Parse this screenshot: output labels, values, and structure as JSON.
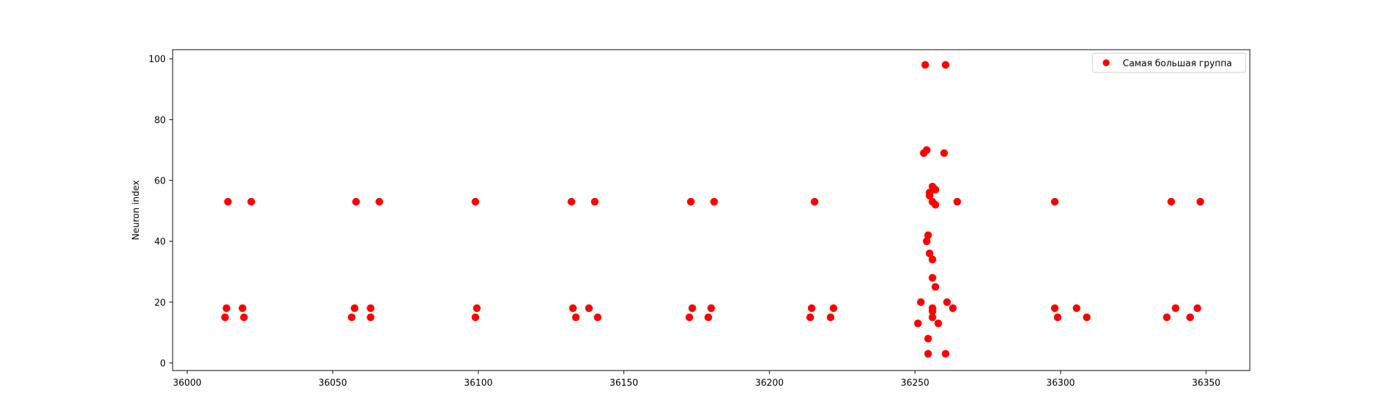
{
  "chart_data": {
    "type": "scatter",
    "title": "",
    "xlabel": "",
    "ylabel": "Neuron index",
    "xlim": [
      35995,
      36365
    ],
    "ylim": [
      -2.5,
      103
    ],
    "xticks": [
      36000,
      36050,
      36100,
      36150,
      36200,
      36250,
      36300,
      36350
    ],
    "yticks": [
      0,
      20,
      40,
      60,
      80,
      100
    ],
    "grid": false,
    "legend_position": "top-right",
    "series": [
      {
        "name": "Самая большая группа",
        "color": "#ff0000",
        "marker": "circle",
        "points": [
          [
            36014,
            53
          ],
          [
            36022,
            53
          ],
          [
            36013.5,
            18
          ],
          [
            36019,
            18
          ],
          [
            36013,
            15
          ],
          [
            36019.5,
            15
          ],
          [
            36058,
            53
          ],
          [
            36066,
            53
          ],
          [
            36057.5,
            18
          ],
          [
            36063,
            18
          ],
          [
            36056.5,
            15
          ],
          [
            36063,
            15
          ],
          [
            36099,
            53
          ],
          [
            36099.5,
            18
          ],
          [
            36099,
            15
          ],
          [
            36132,
            53
          ],
          [
            36140,
            53
          ],
          [
            36132.5,
            18
          ],
          [
            36138,
            18
          ],
          [
            36133.5,
            15
          ],
          [
            36141,
            15
          ],
          [
            36173,
            53
          ],
          [
            36181,
            53
          ],
          [
            36173.5,
            18
          ],
          [
            36180,
            18
          ],
          [
            36172.5,
            15
          ],
          [
            36179,
            15
          ],
          [
            36215.5,
            53
          ],
          [
            36214.5,
            18
          ],
          [
            36222,
            18
          ],
          [
            36214,
            15
          ],
          [
            36221,
            15
          ],
          [
            36253.5,
            98
          ],
          [
            36260.5,
            98
          ],
          [
            36253,
            69
          ],
          [
            36254,
            70
          ],
          [
            36260,
            69
          ],
          [
            36255,
            55
          ],
          [
            36255,
            56
          ],
          [
            36256,
            58
          ],
          [
            36257,
            57
          ],
          [
            36256,
            53
          ],
          [
            36257,
            52
          ],
          [
            36264.5,
            53
          ],
          [
            36254.5,
            42
          ],
          [
            36254,
            40
          ],
          [
            36255,
            36
          ],
          [
            36256,
            34
          ],
          [
            36256,
            28
          ],
          [
            36257,
            25
          ],
          [
            36252,
            20
          ],
          [
            36261,
            20
          ],
          [
            36256,
            18
          ],
          [
            36263,
            18
          ],
          [
            36256,
            17
          ],
          [
            36256,
            15
          ],
          [
            36251,
            13
          ],
          [
            36258,
            13
          ],
          [
            36254.5,
            8
          ],
          [
            36254.5,
            3
          ],
          [
            36260.5,
            3
          ],
          [
            36298,
            53
          ],
          [
            36298,
            18
          ],
          [
            36305.5,
            18
          ],
          [
            36299,
            15
          ],
          [
            36309,
            15
          ],
          [
            36338,
            53
          ],
          [
            36348,
            53
          ],
          [
            36339.5,
            18
          ],
          [
            36347,
            18
          ],
          [
            36336.5,
            15
          ],
          [
            36344.5,
            15
          ]
        ]
      }
    ]
  }
}
